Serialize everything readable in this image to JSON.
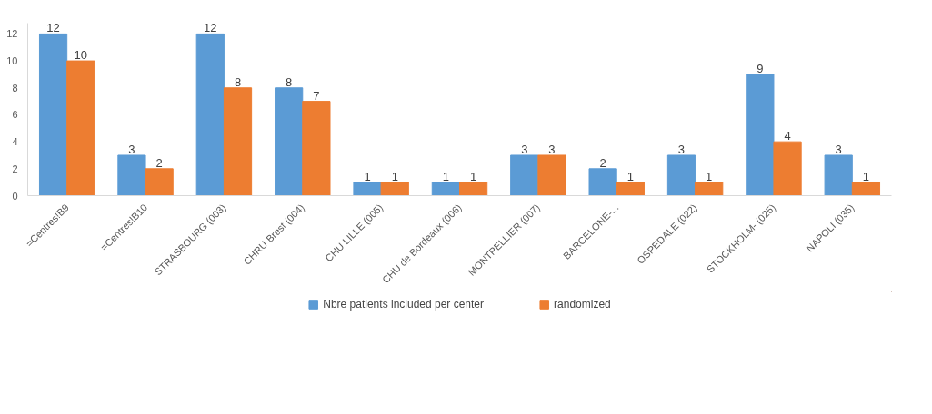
{
  "chart_data": {
    "type": "bar",
    "categories": [
      "=Centres!B9",
      "=Centres!B10",
      "STRASBOURG (003)",
      "CHRU Brest (004)",
      "CHU LILLE (005)",
      "CHU de Bordeaux (006)",
      "MONTPELLIER (007)",
      "BARCELONE-...",
      "OSPEDALE (022)",
      "STOCKHOLM- (025)",
      "NAPOLI (035)"
    ],
    "series": [
      {
        "name": "Nbre patients included per center",
        "color": "#5b9bd5",
        "values": [
          12,
          3,
          12,
          8,
          1,
          1,
          3,
          2,
          3,
          9,
          3
        ]
      },
      {
        "name": "randomized",
        "color": "#ed7d31",
        "values": [
          10,
          2,
          8,
          7,
          1,
          1,
          3,
          1,
          1,
          4,
          1
        ]
      }
    ],
    "ylim": [
      0,
      12.8
    ],
    "yticks": [
      0,
      2,
      4,
      6,
      8,
      10,
      12
    ],
    "grid": false,
    "legend": "bottom",
    "data_labels": true
  }
}
